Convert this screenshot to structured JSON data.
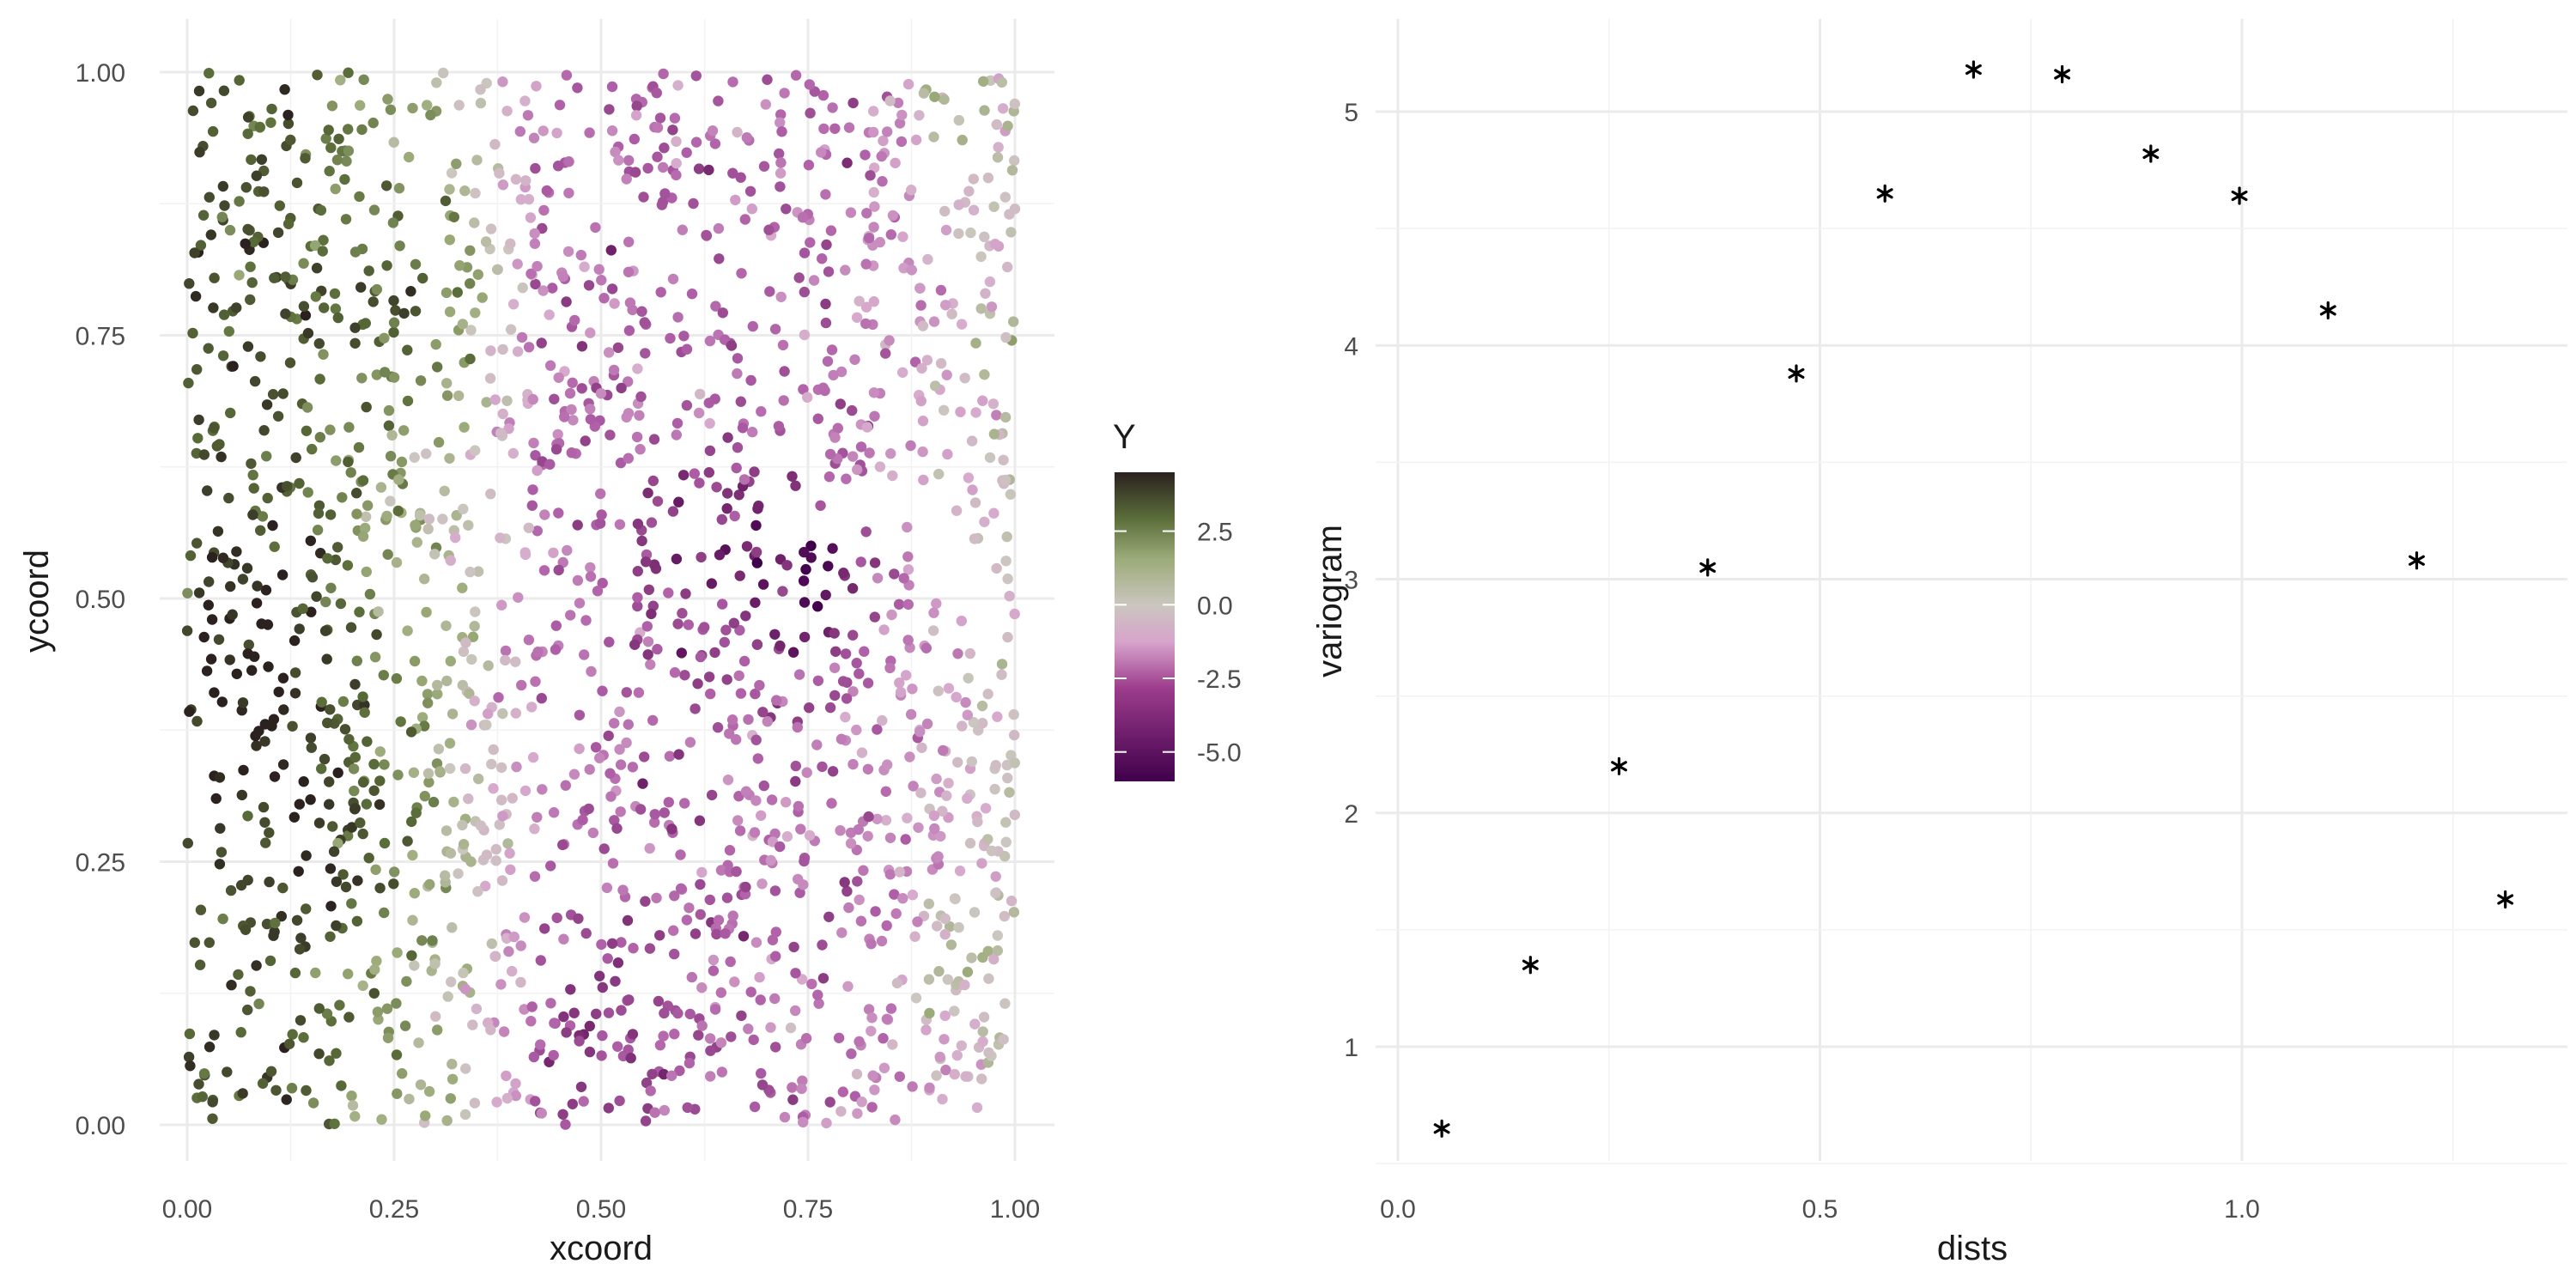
{
  "colors": {
    "low": "#40004b",
    "mid_low": "#c06aad",
    "mid": "#cbc6bf",
    "mid_high": "#6e8b4a",
    "high": "#2b211f",
    "variogram_mark": "#000000",
    "grid": "#ebebeb"
  },
  "chart_data": [
    {
      "type": "scatter",
      "xlabel": "xcoord",
      "ylabel": "ycoord",
      "xlim": [
        0,
        1
      ],
      "ylim": [
        0,
        1
      ],
      "xticks": [
        "0.00",
        "0.25",
        "0.50",
        "0.75",
        "1.00"
      ],
      "yticks": [
        "0.00",
        "0.25",
        "0.50",
        "0.75",
        "1.00"
      ],
      "grid": true,
      "color_variable": "Y",
      "n_points": 2000,
      "point_color_note": "Points are colored by Y: mostly positive (green to dark) for xcoord < 0.35, mostly negative (pink to dark purple) for xcoord 0.35–0.85, mixed near xcoord 0.85–1.0",
      "legend": {
        "title": "Y",
        "type": "colorbar",
        "position": "right",
        "limits": [
          -6,
          4.5
        ],
        "ticks": [
          "2.5",
          "0.0",
          "-2.5",
          "-5.0"
        ],
        "tick_values": [
          2.5,
          0.0,
          -2.5,
          -5.0
        ]
      }
    },
    {
      "type": "scatter",
      "marker": "asterisk",
      "xlabel": "dists",
      "ylabel": "variogram",
      "xlim": [
        0,
        1.35
      ],
      "ylim": [
        0.5,
        5.4
      ],
      "xticks": [
        "0.0",
        "0.5",
        "1.0"
      ],
      "yticks": [
        "1",
        "2",
        "3",
        "4",
        "5"
      ],
      "grid": true,
      "x": [
        0.052,
        0.157,
        0.262,
        0.367,
        0.472,
        0.577,
        0.682,
        0.787,
        0.892,
        0.997,
        1.102,
        1.207,
        1.312
      ],
      "y": [
        0.65,
        1.35,
        2.2,
        3.05,
        3.88,
        4.65,
        5.18,
        5.16,
        4.82,
        4.64,
        4.15,
        3.08,
        1.63
      ]
    }
  ]
}
